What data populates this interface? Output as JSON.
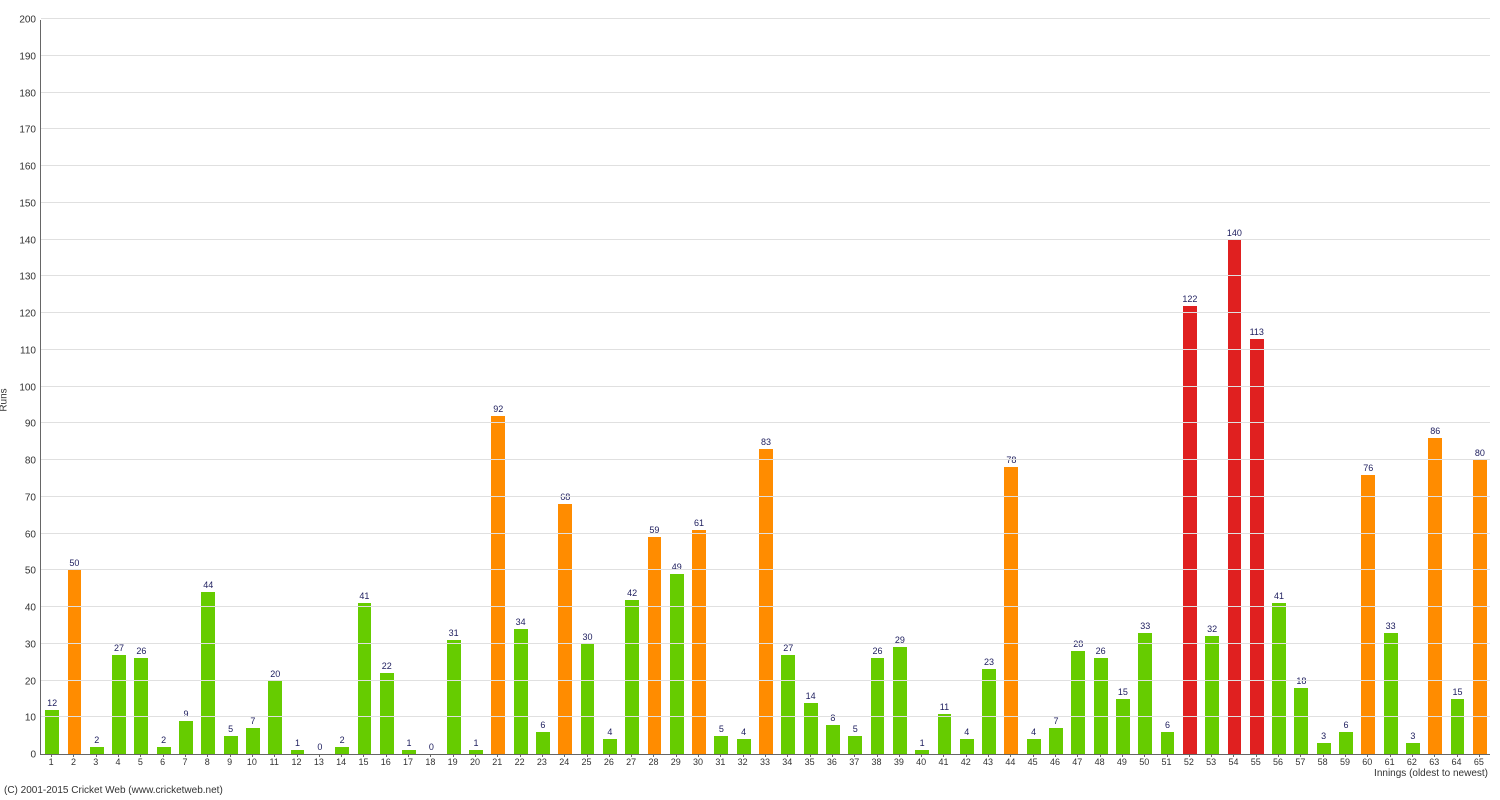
{
  "chart": {
    "type": "bar",
    "x_axis_title": "Innings (oldest to newest)",
    "y_axis_title": "Runs",
    "ylim": [
      0,
      200
    ],
    "ytick_step": 10,
    "background_color": "#ffffff",
    "grid_color": "#e0e0e0",
    "axis_color": "#666666",
    "label_color": "#333333",
    "value_label_color": "#202060",
    "value_label_fontsize": 9,
    "tick_label_fontsize": 10,
    "bar_width_ratio": 0.62,
    "colors": {
      "low": "#66cc00",
      "fifty": "#ff8c00",
      "hundred": "#e02020"
    },
    "color_thresholds": {
      "fifty": 50,
      "hundred": 100
    },
    "values": [
      12,
      50,
      2,
      27,
      26,
      2,
      9,
      44,
      5,
      7,
      20,
      1,
      0,
      2,
      41,
      22,
      1,
      0,
      31,
      1,
      92,
      34,
      6,
      68,
      30,
      4,
      42,
      59,
      49,
      61,
      5,
      4,
      83,
      27,
      14,
      8,
      5,
      26,
      29,
      1,
      11,
      4,
      23,
      78,
      4,
      7,
      28,
      26,
      15,
      33,
      6,
      122,
      32,
      140,
      113,
      41,
      18,
      3,
      6,
      76,
      33,
      3,
      86,
      15,
      80
    ]
  },
  "copyright": "(C) 2001-2015 Cricket Web (www.cricketweb.net)"
}
